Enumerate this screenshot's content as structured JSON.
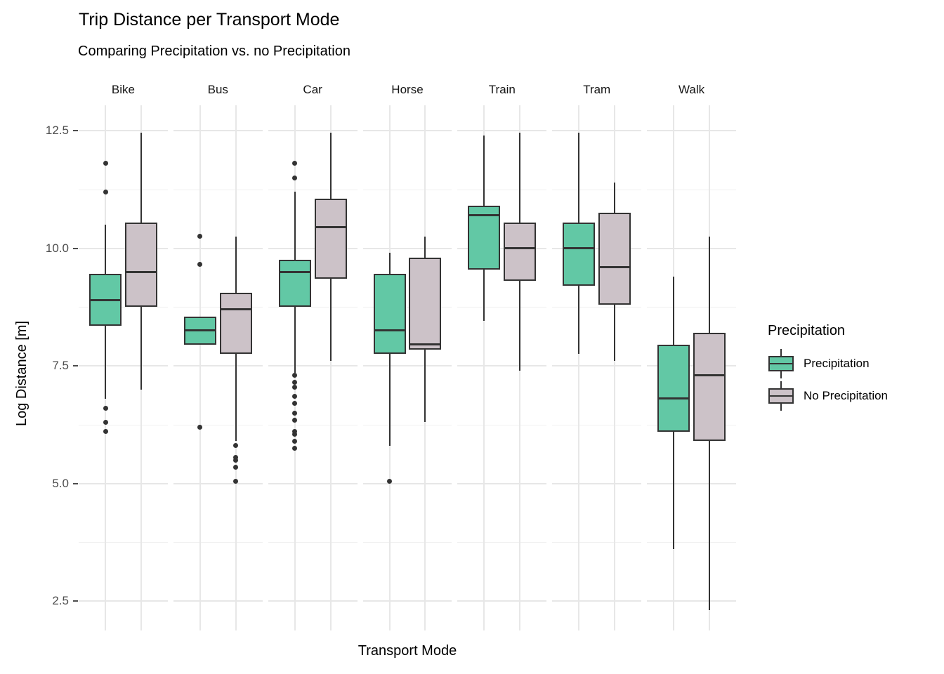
{
  "chart_data": {
    "type": "boxplot",
    "title": "Trip Distance per Transport Mode",
    "subtitle": "Comparing Precipitation vs. no Precipitation",
    "xlabel": "Transport Mode",
    "ylabel": "Log Distance [m]",
    "facets": [
      "Bike",
      "Bus",
      "Car",
      "Horse",
      "Train",
      "Tram",
      "Walk"
    ],
    "y_ticks": [
      {
        "label": "12.5",
        "value": 12.5
      },
      {
        "label": "10.0",
        "value": 10.0
      },
      {
        "label": "7.5",
        "value": 7.5
      },
      {
        "label": "5.0",
        "value": 5.0
      },
      {
        "label": "2.5",
        "value": 2.5
      }
    ],
    "y_minor_gridlines": [
      11.25,
      8.75,
      6.25,
      3.75
    ],
    "y_domain": [
      1.87,
      13.04
    ],
    "grid": true,
    "legend_position": "right",
    "legend": {
      "title": "Precipitation",
      "entries": [
        {
          "label": "Precipitation",
          "key": "precipitation",
          "color": "#62c8a5"
        },
        {
          "label": "No Precipitation",
          "key": "no_precipitation",
          "color": "#ccc2c8"
        }
      ]
    },
    "colors": {
      "precipitation": "#62c8a5",
      "no_precipitation": "#ccc2c8",
      "box_border": "#333333",
      "median": "#333333",
      "outlier": "#333333",
      "gridline_major": "#e7e7e7",
      "gridline_minor": "#f0f0f0",
      "tick_text": "#4d4d4d"
    },
    "groups": [
      {
        "facet": "Bike",
        "precipitation": {
          "whisker_low": 6.8,
          "q1": 8.35,
          "median": 8.9,
          "q3": 9.45,
          "whisker_high": 10.5,
          "outliers": [
            11.8,
            11.2,
            6.6,
            6.3,
            6.1
          ]
        },
        "no_precipitation": {
          "whisker_low": 7.0,
          "q1": 8.75,
          "median": 9.5,
          "q3": 10.55,
          "whisker_high": 12.45,
          "outliers": []
        }
      },
      {
        "facet": "Bus",
        "precipitation": {
          "whisker_low": 7.95,
          "q1": 7.95,
          "median": 8.25,
          "q3": 8.55,
          "whisker_high": 8.55,
          "outliers": [
            10.25,
            9.65,
            6.2
          ]
        },
        "no_precipitation": {
          "whisker_low": 5.9,
          "q1": 7.75,
          "median": 8.7,
          "q3": 9.05,
          "whisker_high": 10.25,
          "outliers": [
            5.8,
            5.55,
            5.5,
            5.35,
            5.05
          ]
        }
      },
      {
        "facet": "Car",
        "precipitation": {
          "whisker_low": 7.35,
          "q1": 8.75,
          "median": 9.5,
          "q3": 9.75,
          "whisker_high": 11.2,
          "outliers": [
            11.8,
            11.5,
            7.3,
            7.15,
            7.05,
            6.85,
            6.7,
            6.5,
            6.35,
            6.1,
            6.05,
            5.9,
            5.75
          ]
        },
        "no_precipitation": {
          "whisker_low": 7.6,
          "q1": 9.35,
          "median": 10.45,
          "q3": 11.05,
          "whisker_high": 12.45,
          "outliers": []
        }
      },
      {
        "facet": "Horse",
        "precipitation": {
          "whisker_low": 5.8,
          "q1": 7.75,
          "median": 8.25,
          "q3": 9.45,
          "whisker_high": 9.9,
          "outliers": [
            5.05
          ]
        },
        "no_precipitation": {
          "whisker_low": 6.3,
          "q1": 7.85,
          "median": 7.95,
          "q3": 9.8,
          "whisker_high": 10.25,
          "outliers": []
        }
      },
      {
        "facet": "Train",
        "precipitation": {
          "whisker_low": 8.45,
          "q1": 9.55,
          "median": 10.7,
          "q3": 10.9,
          "whisker_high": 12.4,
          "outliers": []
        },
        "no_precipitation": {
          "whisker_low": 7.4,
          "q1": 9.3,
          "median": 10.0,
          "q3": 10.55,
          "whisker_high": 12.45,
          "outliers": []
        }
      },
      {
        "facet": "Tram",
        "precipitation": {
          "whisker_low": 7.75,
          "q1": 9.2,
          "median": 10.0,
          "q3": 10.55,
          "whisker_high": 12.45,
          "outliers": []
        },
        "no_precipitation": {
          "whisker_low": 7.6,
          "q1": 8.8,
          "median": 9.6,
          "q3": 10.75,
          "whisker_high": 11.4,
          "outliers": []
        }
      },
      {
        "facet": "Walk",
        "precipitation": {
          "whisker_low": 3.6,
          "q1": 6.1,
          "median": 6.8,
          "q3": 7.95,
          "whisker_high": 9.4,
          "outliers": []
        },
        "no_precipitation": {
          "whisker_low": 2.3,
          "q1": 5.9,
          "median": 7.3,
          "q3": 8.2,
          "whisker_high": 10.25,
          "outliers": []
        }
      }
    ]
  }
}
